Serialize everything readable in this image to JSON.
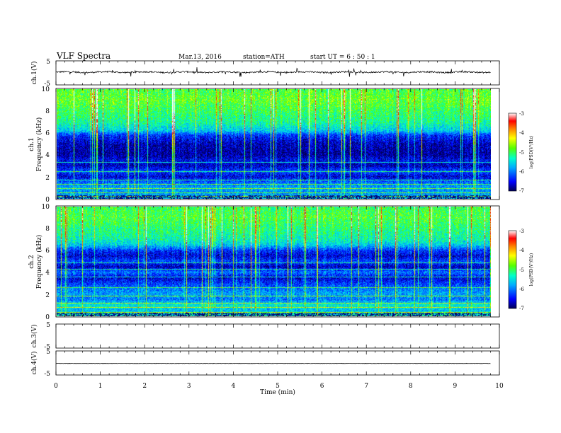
{
  "header": {
    "title": "VLF  Spectra",
    "date": "Mar.13, 2016",
    "station": "station=ATH",
    "start_ut": "start  UT  =   6  : 50 : 1"
  },
  "colors": {
    "trace": "#000000",
    "colormap": [
      "#000055",
      "#0000ff",
      "#00aaff",
      "#00ffcc",
      "#55ff00",
      "#ffff00",
      "#ff8000",
      "#ff0000",
      "#ffffff"
    ]
  },
  "chart_data": [
    {
      "type": "line",
      "panel": "ch1-waveform",
      "ylabel": "ch.1(V)",
      "ylim": [
        -5,
        5
      ],
      "yticks": [
        "5",
        "-5"
      ],
      "xlim": [
        0,
        10
      ],
      "series": [
        {
          "mean": 0.3,
          "noise_amplitude": 0.6,
          "x_end": 9.8
        }
      ]
    },
    {
      "type": "heatmap",
      "panel": "ch1-spectrogram",
      "ylabel_top": "ch.1",
      "ylabel": "Frequency  (kHz)",
      "ylim": [
        0,
        10
      ],
      "yticks": [
        "0",
        "2",
        "4",
        "6",
        "8",
        "10"
      ],
      "xlim": [
        0,
        10
      ],
      "x_end": 9.8,
      "colorbar": {
        "label": "log(PSD(V²/Hz)",
        "range": [
          -7,
          -3
        ],
        "ticks": [
          "-3",
          "-4",
          "-5",
          "-6",
          "-7"
        ]
      },
      "profile_kHz_vs_logPSD": [
        [
          0,
          -5.6
        ],
        [
          0.5,
          -5.9
        ],
        [
          1,
          -5.8
        ],
        [
          1.5,
          -6.1
        ],
        [
          2,
          -6.6
        ],
        [
          2.5,
          -6.2
        ],
        [
          3,
          -6.7
        ],
        [
          3.5,
          -6.5
        ],
        [
          4,
          -6.8
        ],
        [
          5,
          -6.7
        ],
        [
          5.8,
          -6.3
        ],
        [
          6.2,
          -5.6
        ],
        [
          7,
          -5.2
        ],
        [
          8,
          -5.0
        ],
        [
          9,
          -4.8
        ],
        [
          10,
          -4.9
        ]
      ],
      "horizontal_lines_kHz": [
        0.2,
        0.5,
        0.9,
        1.3,
        1.7,
        2.5,
        3.3
      ]
    },
    {
      "type": "heatmap",
      "panel": "ch2-spectrogram",
      "ylabel_top": "ch.2",
      "ylabel": "Frequency  (kHz)",
      "ylim": [
        0,
        10
      ],
      "yticks": [
        "0",
        "2",
        "4",
        "6",
        "8",
        "10"
      ],
      "xlim": [
        0,
        10
      ],
      "x_end": 9.8,
      "colorbar": {
        "label": "log(PSD(V²/Hz)",
        "range": [
          -7,
          -3
        ],
        "ticks": [
          "-3",
          "-4",
          "-5",
          "-6",
          "-7"
        ]
      },
      "profile_kHz_vs_logPSD": [
        [
          0,
          -5.3
        ],
        [
          0.5,
          -5.7
        ],
        [
          1,
          -5.4
        ],
        [
          1.5,
          -6.0
        ],
        [
          2,
          -5.8
        ],
        [
          2.5,
          -6.0
        ],
        [
          3,
          -6.3
        ],
        [
          3.5,
          -6.6
        ],
        [
          4,
          -6.0
        ],
        [
          4.5,
          -6.7
        ],
        [
          5,
          -6.2
        ],
        [
          5.5,
          -6.6
        ],
        [
          6,
          -6.3
        ],
        [
          6.5,
          -5.6
        ],
        [
          7,
          -5.3
        ],
        [
          8,
          -5.1
        ],
        [
          9,
          -4.9
        ],
        [
          10,
          -5.0
        ]
      ],
      "horizontal_lines_kHz": [
        0.3,
        0.8,
        1.2,
        1.8,
        2.6,
        3.6,
        4.3,
        4.9
      ]
    },
    {
      "type": "line",
      "panel": "ch3-waveform",
      "ylabel": "ch.3(V)",
      "ylim": [
        -5,
        5
      ],
      "yticks": [
        "5",
        "-5"
      ],
      "xlim": [
        0,
        10
      ],
      "series": []
    },
    {
      "type": "line",
      "panel": "ch4-waveform",
      "ylabel": "ch.4(V)",
      "ylim": [
        -5,
        5
      ],
      "yticks": [
        "5",
        "-5"
      ],
      "xlim": [
        0,
        10
      ],
      "series": [
        {
          "mean": -0.2,
          "noise_amplitude": 0.15,
          "x_end": 9.8
        }
      ]
    }
  ],
  "x_axis": {
    "label": "Time  (min)",
    "ticks": [
      "0",
      "1",
      "2",
      "3",
      "4",
      "5",
      "6",
      "7",
      "8",
      "9",
      "10"
    ],
    "range": [
      0,
      10
    ]
  }
}
